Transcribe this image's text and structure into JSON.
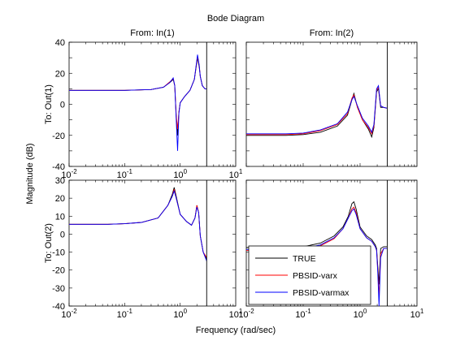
{
  "figure": {
    "title": "Bode Diagram",
    "xlabel": "Frequency  (rad/sec)",
    "ylabel": "Magnitude (dB)"
  },
  "legend": {
    "position": "lower-left of bottom-right panel",
    "entries": [
      {
        "label": "TRUE",
        "color": "#000000"
      },
      {
        "label": "PBSID-varx",
        "color": "#ff0000"
      },
      {
        "label": "PBSID-varmax",
        "color": "#0000ff"
      }
    ]
  },
  "chart_data": [
    {
      "type": "line",
      "panel": "in1-out1",
      "col_title": "From: In(1)",
      "row_title": "To: Out(1)",
      "xscale": "log",
      "xlim": [
        0.01,
        10
      ],
      "ylim": [
        -40,
        40
      ],
      "x_ticks": [
        "10^-2",
        "10^-1",
        "10^0",
        "10^1"
      ],
      "y_ticks": [
        40,
        20,
        0,
        -20,
        -40
      ],
      "series": [
        {
          "name": "TRUE",
          "color": "#000000",
          "x": [
            0.01,
            0.05,
            0.1,
            0.3,
            0.5,
            0.65,
            0.75,
            0.8,
            0.85,
            0.9,
            0.95,
            1.0,
            1.2,
            1.5,
            1.8,
            2.05,
            2.2,
            2.3,
            2.5,
            2.8,
            3.0
          ],
          "y": [
            9,
            9,
            9,
            9.5,
            11,
            14,
            16,
            12,
            -8,
            -20,
            -5,
            1,
            5,
            9,
            16,
            30,
            24,
            18,
            12,
            10,
            10
          ]
        },
        {
          "name": "PBSID-varx",
          "color": "#ff0000",
          "x": [
            0.01,
            0.05,
            0.1,
            0.3,
            0.5,
            0.65,
            0.75,
            0.8,
            0.85,
            0.9,
            0.95,
            1.0,
            1.2,
            1.5,
            1.8,
            2.05,
            2.2,
            2.3,
            2.5,
            2.8,
            3.0
          ],
          "y": [
            9,
            9,
            9,
            9.5,
            11,
            14.5,
            16.5,
            12,
            -7,
            -16,
            -5,
            1,
            5,
            9,
            16,
            31,
            25,
            18,
            12,
            10,
            10
          ]
        },
        {
          "name": "PBSID-varmax",
          "color": "#0000ff",
          "x": [
            0.01,
            0.05,
            0.1,
            0.3,
            0.5,
            0.65,
            0.75,
            0.8,
            0.85,
            0.9,
            0.95,
            1.0,
            1.2,
            1.5,
            1.8,
            2.05,
            2.2,
            2.3,
            2.5,
            2.8,
            3.0
          ],
          "y": [
            9,
            9,
            9,
            9.5,
            11,
            14,
            17,
            12,
            -10,
            -30,
            -6,
            1,
            5,
            9,
            16,
            32,
            25,
            18,
            12,
            10,
            10
          ]
        }
      ]
    },
    {
      "type": "line",
      "panel": "in2-out1",
      "col_title": "From: In(2)",
      "row_title": "",
      "xscale": "log",
      "xlim": [
        0.01,
        10
      ],
      "ylim": [
        -40,
        40
      ],
      "x_ticks": [],
      "y_ticks": [],
      "series": [
        {
          "name": "TRUE",
          "color": "#000000",
          "x": [
            0.01,
            0.05,
            0.1,
            0.2,
            0.4,
            0.6,
            0.72,
            0.78,
            0.9,
            1.1,
            1.4,
            1.6,
            1.75,
            1.95,
            2.1,
            2.3,
            2.6,
            3.0
          ],
          "y": [
            -20,
            -20,
            -19.5,
            -18,
            -14,
            -7,
            3,
            7,
            -2,
            -10,
            -16,
            -21,
            -15,
            8,
            10,
            -2,
            -2,
            -2.5
          ]
        },
        {
          "name": "PBSID-varx",
          "color": "#ff0000",
          "x": [
            0.01,
            0.05,
            0.1,
            0.2,
            0.4,
            0.6,
            0.72,
            0.78,
            0.9,
            1.1,
            1.4,
            1.6,
            1.75,
            1.95,
            2.1,
            2.3,
            2.6,
            3.0
          ],
          "y": [
            -19.5,
            -19.5,
            -19,
            -17,
            -13,
            -6,
            4,
            6,
            -2,
            -10,
            -15,
            -19,
            -14,
            9,
            11,
            -1,
            -2,
            -2.5
          ]
        },
        {
          "name": "PBSID-varmax",
          "color": "#0000ff",
          "x": [
            0.01,
            0.05,
            0.1,
            0.2,
            0.4,
            0.6,
            0.72,
            0.78,
            0.9,
            1.1,
            1.4,
            1.6,
            1.75,
            1.95,
            2.1,
            2.3,
            2.6,
            3.0
          ],
          "y": [
            -19,
            -19,
            -18.5,
            -16.5,
            -12.5,
            -5,
            3,
            5,
            -1,
            -9,
            -14,
            -18,
            -13,
            10,
            12,
            -1,
            -2,
            -2.5
          ]
        }
      ]
    },
    {
      "type": "line",
      "panel": "in1-out2",
      "col_title": "",
      "row_title": "To: Out(2)",
      "xscale": "log",
      "xlim": [
        0.01,
        10
      ],
      "ylim": [
        -40,
        30
      ],
      "x_ticks": [
        "10^-2",
        "10^-1",
        "10^0",
        "10^1"
      ],
      "y_ticks": [
        30,
        20,
        10,
        0,
        -10,
        -20,
        -30,
        -40
      ],
      "series": [
        {
          "name": "TRUE",
          "color": "#000000",
          "x": [
            0.01,
            0.05,
            0.1,
            0.2,
            0.4,
            0.6,
            0.72,
            0.78,
            0.85,
            1.0,
            1.3,
            1.6,
            1.85,
            2.0,
            2.15,
            2.3,
            2.6,
            3.0
          ],
          "y": [
            5.5,
            5.5,
            5.8,
            6.5,
            9,
            16,
            22,
            26,
            21,
            11,
            7,
            5,
            9,
            16,
            12,
            -1,
            -10,
            -14
          ]
        },
        {
          "name": "PBSID-varx",
          "color": "#ff0000",
          "x": [
            0.01,
            0.05,
            0.1,
            0.2,
            0.4,
            0.6,
            0.72,
            0.78,
            0.85,
            1.0,
            1.3,
            1.6,
            1.85,
            2.0,
            2.15,
            2.3,
            2.6,
            3.0
          ],
          "y": [
            5.5,
            5.5,
            5.8,
            6.5,
            9,
            16,
            21,
            25,
            20,
            11,
            7,
            5,
            9,
            16,
            12,
            -1,
            -10,
            -13
          ]
        },
        {
          "name": "PBSID-varmax",
          "color": "#0000ff",
          "x": [
            0.01,
            0.05,
            0.1,
            0.2,
            0.4,
            0.6,
            0.72,
            0.78,
            0.85,
            1.0,
            1.3,
            1.6,
            1.85,
            2.0,
            2.15,
            2.3,
            2.6,
            3.0
          ],
          "y": [
            5.5,
            5.5,
            5.8,
            6.5,
            9,
            16,
            21,
            24,
            20,
            11,
            7,
            5,
            9,
            15,
            12,
            -1,
            -10,
            -15
          ]
        }
      ]
    },
    {
      "type": "line",
      "panel": "in2-out2",
      "col_title": "",
      "row_title": "",
      "xscale": "log",
      "xlim": [
        0.01,
        10
      ],
      "ylim": [
        -40,
        30
      ],
      "x_ticks": [
        "10^-2",
        "10^-1",
        "10^0",
        "10^1"
      ],
      "y_ticks": [],
      "series": [
        {
          "name": "TRUE",
          "color": "#000000",
          "x": [
            0.01,
            0.05,
            0.1,
            0.2,
            0.35,
            0.5,
            0.62,
            0.72,
            0.78,
            0.85,
            1.0,
            1.3,
            1.6,
            1.85,
            1.95,
            2.05,
            2.15,
            2.3,
            2.6,
            3.0
          ],
          "y": [
            -7.5,
            -7.5,
            -7,
            -5,
            -1,
            4,
            10,
            17,
            18,
            14,
            4,
            -1,
            -3,
            -6,
            -8,
            -18,
            -28,
            -8,
            -7,
            -7
          ]
        },
        {
          "name": "PBSID-varx",
          "color": "#ff0000",
          "x": [
            0.01,
            0.05,
            0.1,
            0.2,
            0.35,
            0.5,
            0.62,
            0.72,
            0.78,
            0.85,
            1.0,
            1.3,
            1.6,
            1.85,
            1.95,
            2.05,
            2.15,
            2.3,
            2.6,
            3.0
          ],
          "y": [
            -9,
            -9,
            -8.5,
            -6.5,
            -2.5,
            3,
            9,
            14,
            15,
            12,
            3,
            -2,
            -4,
            -7,
            -9,
            -20,
            -35,
            -11,
            -8,
            -8
          ]
        },
        {
          "name": "PBSID-varmax",
          "color": "#0000ff",
          "x": [
            0.01,
            0.05,
            0.1,
            0.2,
            0.35,
            0.5,
            0.62,
            0.72,
            0.78,
            0.85,
            1.0,
            1.3,
            1.6,
            1.85,
            1.95,
            2.05,
            2.15,
            2.3,
            2.6,
            3.0
          ],
          "y": [
            -8.5,
            -8.5,
            -8,
            -6,
            -2,
            3,
            9,
            13,
            14,
            11,
            3,
            -2,
            -4,
            -7,
            -9,
            -22,
            -40,
            -13,
            -8,
            -8
          ]
        }
      ]
    }
  ]
}
